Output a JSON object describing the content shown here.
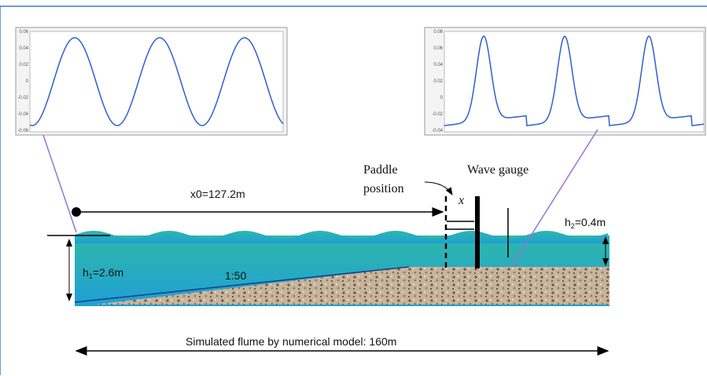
{
  "left_plot": {
    "yticks": [
      "0.06",
      "0.04",
      "0.02",
      "0",
      "-0.02",
      "-0.04",
      "-0.06"
    ]
  },
  "right_plot": {
    "yticks": [
      "0.08",
      "0.06",
      "0.04",
      "0.02",
      "0",
      "-0.02",
      "-0.04"
    ]
  },
  "labels": {
    "paddle_line1": "Paddle",
    "paddle_line2": "position",
    "wave_gauge": "Wave gauge",
    "paddle_symbol": "x",
    "x0": "x0=127.2m",
    "h2": {
      "base": "h",
      "sub": "2",
      "rest": "=0.4m"
    },
    "h1": {
      "base": "h",
      "sub": "1",
      "rest": "=2.6m"
    },
    "slope": "1:50",
    "flume": "Simulated flume by numerical model: 160m"
  }
}
